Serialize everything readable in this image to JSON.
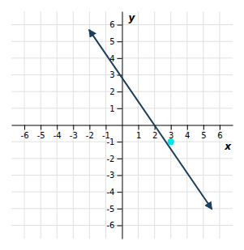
{
  "chart_data": {
    "type": "line",
    "xlabel": "x",
    "ylabel": "y",
    "xlim": [
      -6.8,
      6.8
    ],
    "ylim": [
      -6.8,
      6.8
    ],
    "xticks": [
      -6,
      -5,
      -4,
      -3,
      -2,
      -1,
      1,
      2,
      3,
      4,
      5,
      6
    ],
    "yticks": [
      -6,
      -5,
      -4,
      -3,
      -2,
      -1,
      1,
      2,
      3,
      4,
      5,
      6
    ],
    "grid": true,
    "series": [
      {
        "type": "line",
        "color": "#1e3f5a",
        "x": [
          -2.0,
          5.5
        ],
        "values": [
          5.667,
          -5.0
        ]
      },
      {
        "type": "scatter",
        "color": "#00e5e5",
        "x": [
          3
        ],
        "values": [
          -1
        ]
      }
    ]
  }
}
